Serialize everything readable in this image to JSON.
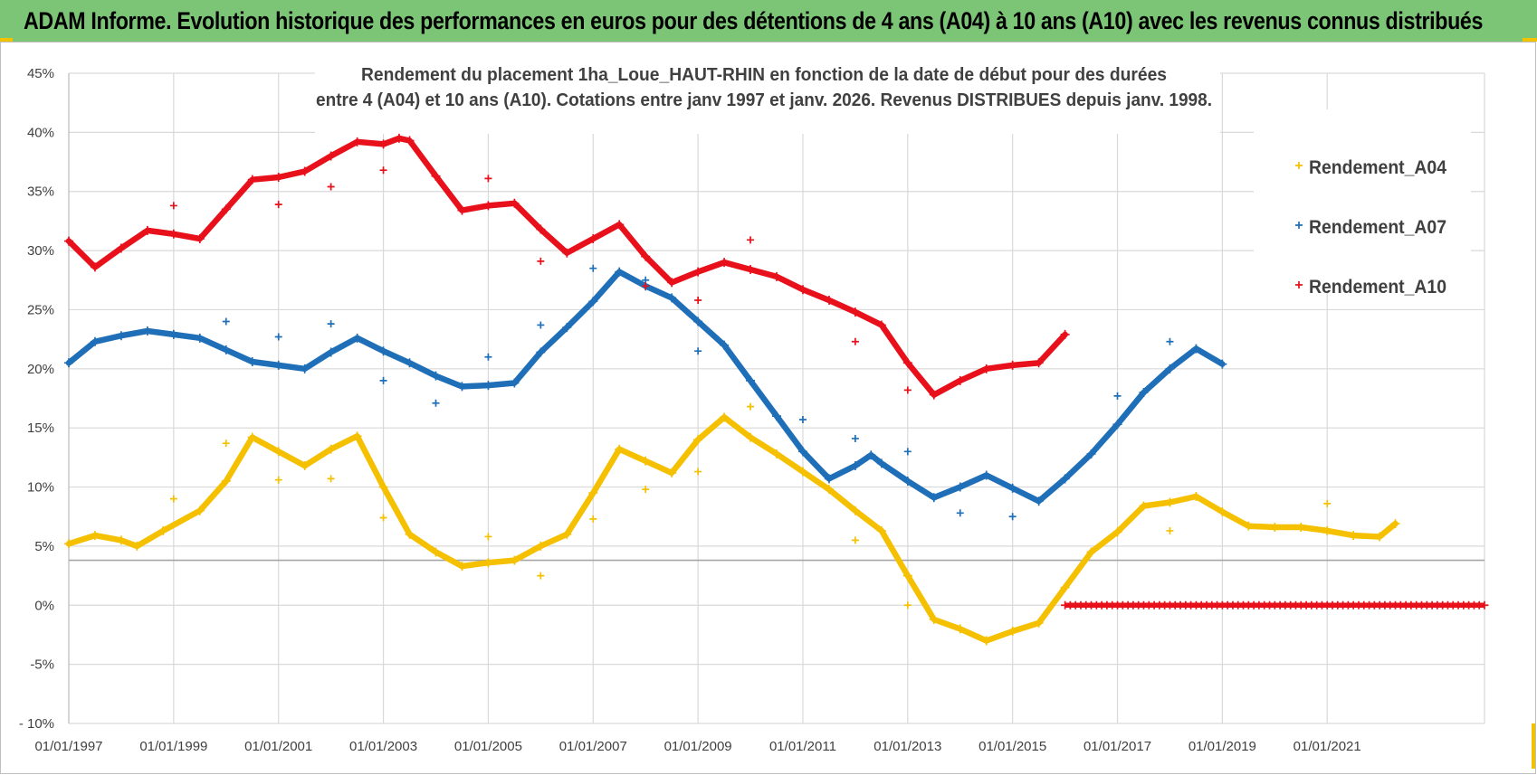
{
  "banner": {
    "title": "ADAM Informe. Evolution historique des performances en euros pour des détentions de 4 ans (A04) à 10 ans (A10) avec les revenus connus distribués"
  },
  "chart_data": {
    "type": "scatter",
    "title_line1": "Rendement du placement 1ha_Loue_HAUT-RHIN en fonction de la date de début pour des durées",
    "title_line2": "entre 4 (A04) et 10 ans (A10).  Cotations entre janv 1997 et janv. 2026. Revenus DISTRIBUES depuis janv. 1998.",
    "xlabel": "",
    "ylabel": "",
    "xlim": [
      1997.0,
      2024.0
    ],
    "ylim": [
      -10,
      45
    ],
    "x_tick_labels": [
      "01/01/1997",
      "01/01/1999",
      "01/01/2001",
      "01/01/2003",
      "01/01/2005",
      "01/01/2007",
      "01/01/2009",
      "01/01/2011",
      "01/01/2013",
      "01/01/2015",
      "01/01/2017",
      "01/01/2019",
      "01/01/2021"
    ],
    "x_tick_values": [
      1997,
      1999,
      2001,
      2003,
      2005,
      2007,
      2009,
      2011,
      2013,
      2015,
      2017,
      2019,
      2021
    ],
    "y_tick_labels": [
      "- 10%",
      "-5%",
      "0%",
      "5%",
      "10%",
      "15%",
      "20%",
      "25%",
      "30%",
      "35%",
      "40%",
      "45%"
    ],
    "y_tick_values": [
      -10,
      -5,
      0,
      5,
      10,
      15,
      20,
      25,
      30,
      35,
      40,
      45
    ],
    "reference_line_y": 3.8,
    "legend_position": "right",
    "series": [
      {
        "name": "Rendement_A04",
        "color": "#f5c000",
        "x": [
          1997.0,
          1997.5,
          1998.0,
          1998.3,
          1998.8,
          1999.5,
          2000.0,
          2000.5,
          2001.0,
          2001.5,
          2002.0,
          2002.5,
          2003.0,
          2003.5,
          2004.0,
          2004.5,
          2005.0,
          2005.5,
          2006.0,
          2006.5,
          2007.0,
          2007.5,
          2008.0,
          2008.5,
          2009.0,
          2009.5,
          2010.0,
          2010.5,
          2011.0,
          2011.5,
          2012.0,
          2012.5,
          2013.0,
          2013.5,
          2014.0,
          2014.5,
          2015.0,
          2015.5,
          2016.0,
          2016.5,
          2017.0,
          2017.5,
          2018.0,
          2018.5,
          2019.0,
          2019.5,
          2020.0,
          2020.5,
          2021.0,
          2021.5,
          2022.0,
          2022.3
        ],
        "y": [
          5.2,
          5.9,
          5.5,
          5.0,
          6.3,
          8.0,
          10.5,
          14.2,
          13.0,
          11.8,
          13.2,
          14.3,
          10.0,
          6.0,
          4.5,
          3.3,
          3.6,
          3.8,
          5.0,
          6.0,
          9.5,
          13.2,
          12.2,
          11.2,
          14.0,
          15.9,
          14.2,
          12.8,
          11.3,
          9.8,
          8.0,
          6.3,
          2.5,
          -1.2,
          -2.0,
          -3.0,
          -2.2,
          -1.5,
          1.5,
          4.5,
          6.2,
          8.4,
          8.7,
          9.2,
          7.9,
          6.7,
          6.6,
          6.6,
          6.3,
          5.9,
          5.8,
          6.9
        ],
        "scatter_x": [
          1999.0,
          2000.0,
          2001.0,
          2002.0,
          2003.0,
          2005.0,
          2006.0,
          2007.0,
          2008.0,
          2009.0,
          2010.0,
          2012.0,
          2013.0,
          2018.0,
          2021.0
        ],
        "scatter_y": [
          9.0,
          13.7,
          10.6,
          10.7,
          7.4,
          5.8,
          2.5,
          7.3,
          9.8,
          11.3,
          16.8,
          5.5,
          0.0,
          6.3,
          8.6
        ]
      },
      {
        "name": "Rendement_A07",
        "color": "#1f6fb8",
        "x": [
          1997.0,
          1997.5,
          1998.0,
          1998.5,
          1999.0,
          1999.5,
          2000.0,
          2000.5,
          2001.0,
          2001.5,
          2002.0,
          2002.5,
          2003.0,
          2003.5,
          2004.0,
          2004.5,
          2005.0,
          2005.5,
          2006.0,
          2006.5,
          2007.0,
          2007.5,
          2008.0,
          2008.5,
          2009.0,
          2009.5,
          2010.0,
          2010.5,
          2011.0,
          2011.5,
          2012.0,
          2012.3,
          2012.5,
          2013.0,
          2013.5,
          2014.0,
          2014.5,
          2015.0,
          2015.5,
          2016.0,
          2016.5,
          2017.0,
          2017.5,
          2018.0,
          2018.5,
          2019.0
        ],
        "y": [
          20.5,
          22.3,
          22.8,
          23.2,
          22.9,
          22.6,
          21.6,
          20.6,
          20.3,
          20.0,
          21.4,
          22.6,
          21.5,
          20.5,
          19.4,
          18.5,
          18.6,
          18.8,
          21.4,
          23.5,
          25.7,
          28.2,
          27.0,
          26.0,
          24.0,
          22.0,
          19.0,
          16.0,
          13.0,
          10.7,
          11.8,
          12.7,
          12.0,
          10.5,
          9.1,
          10.0,
          11.0,
          9.9,
          8.8,
          10.7,
          12.8,
          15.3,
          18.0,
          20.0,
          21.7,
          20.4
        ],
        "scatter_x": [
          2000.0,
          2001.0,
          2002.0,
          2003.0,
          2004.0,
          2005.0,
          2006.0,
          2007.0,
          2008.0,
          2009.0,
          2011.0,
          2012.0,
          2013.0,
          2014.0,
          2015.0,
          2017.0,
          2018.0
        ],
        "scatter_y": [
          24.0,
          22.7,
          23.8,
          19.0,
          17.1,
          21.0,
          23.7,
          28.5,
          27.5,
          21.5,
          15.7,
          14.1,
          13.0,
          7.8,
          7.5,
          17.7,
          22.3
        ]
      },
      {
        "name": "Rendement_A10",
        "color": "#e8101a",
        "x": [
          1997.0,
          1997.5,
          1998.0,
          1998.5,
          1999.0,
          1999.5,
          2000.0,
          2000.5,
          2001.0,
          2001.5,
          2002.0,
          2002.5,
          2003.0,
          2003.3,
          2003.5,
          2004.0,
          2004.5,
          2005.0,
          2005.5,
          2006.0,
          2006.5,
          2007.0,
          2007.5,
          2008.0,
          2008.5,
          2009.0,
          2009.5,
          2010.0,
          2010.5,
          2011.0,
          2011.5,
          2012.0,
          2012.5,
          2013.0,
          2013.5,
          2014.0,
          2014.5,
          2015.0,
          2015.5,
          2016.0
        ],
        "y": [
          30.8,
          28.6,
          30.2,
          31.7,
          31.4,
          31.0,
          33.5,
          36.0,
          36.2,
          36.7,
          38.0,
          39.2,
          39.0,
          39.5,
          39.3,
          36.3,
          33.4,
          33.8,
          34.0,
          31.8,
          29.8,
          31.0,
          32.2,
          29.5,
          27.3,
          28.2,
          29.0,
          28.4,
          27.8,
          26.7,
          25.8,
          24.8,
          23.7,
          20.5,
          17.8,
          19.0,
          20.0,
          20.3,
          20.5,
          22.9
        ],
        "zero_segment_x": [
          2016.0,
          2024.0
        ],
        "zero_segment_y": 0,
        "scatter_x": [
          1999.0,
          2001.0,
          2002.0,
          2003.0,
          2005.0,
          2006.0,
          2008.0,
          2009.0,
          2010.0,
          2012.0,
          2013.0
        ],
        "scatter_y": [
          33.8,
          33.9,
          35.4,
          36.8,
          36.1,
          29.1,
          27.0,
          25.8,
          30.9,
          22.3,
          18.2
        ]
      }
    ]
  }
}
